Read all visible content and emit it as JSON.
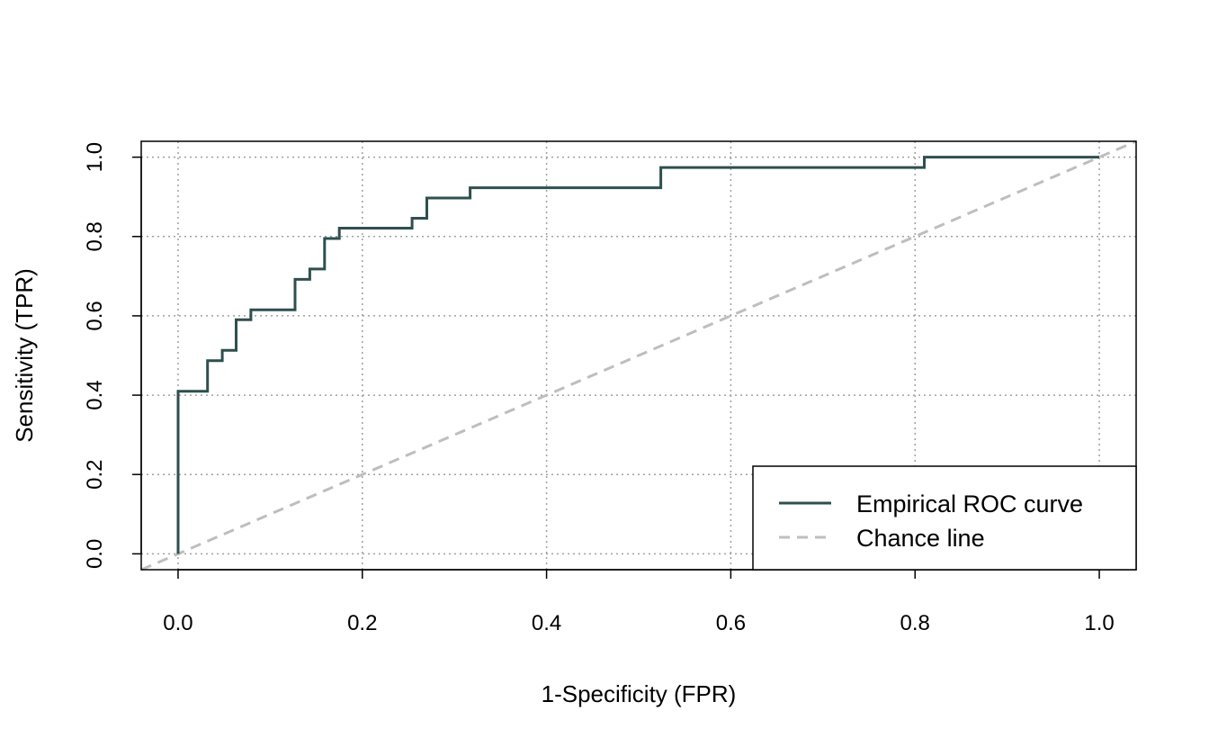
{
  "chart_data": {
    "type": "line",
    "title": "",
    "xlabel": "1-Specificity (FPR)",
    "ylabel": "Sensitivity (TPR)",
    "xlim": [
      -0.04,
      1.04
    ],
    "ylim": [
      -0.04,
      1.04
    ],
    "x_ticks": [
      0.0,
      0.2,
      0.4,
      0.6,
      0.8,
      1.0
    ],
    "y_ticks": [
      0.0,
      0.2,
      0.4,
      0.6,
      0.8,
      1.0
    ],
    "x_tick_labels": [
      "0.0",
      "0.2",
      "0.4",
      "0.6",
      "0.8",
      "1.0"
    ],
    "y_tick_labels": [
      "0.0",
      "0.2",
      "0.4",
      "0.6",
      "0.8",
      "1.0"
    ],
    "grid": true,
    "legend_position": "bottom-right",
    "series": [
      {
        "name": "Empirical ROC curve",
        "style": "solid",
        "color": "#2f4f4f",
        "x": [
          0.0,
          0.0,
          0.032,
          0.032,
          0.048,
          0.048,
          0.063,
          0.063,
          0.079,
          0.079,
          0.127,
          0.127,
          0.143,
          0.143,
          0.159,
          0.159,
          0.175,
          0.175,
          0.254,
          0.254,
          0.27,
          0.27,
          0.317,
          0.317,
          0.524,
          0.524,
          0.81,
          0.81,
          1.0
        ],
        "y": [
          0.0,
          0.41,
          0.41,
          0.487,
          0.487,
          0.513,
          0.513,
          0.59,
          0.59,
          0.615,
          0.615,
          0.692,
          0.692,
          0.718,
          0.718,
          0.795,
          0.795,
          0.821,
          0.821,
          0.846,
          0.846,
          0.897,
          0.897,
          0.923,
          0.923,
          0.974,
          0.974,
          1.0,
          1.0
        ]
      },
      {
        "name": "Chance line",
        "style": "dashed",
        "color": "#bebebe",
        "x": [
          -0.04,
          1.04
        ],
        "y": [
          -0.04,
          1.04
        ]
      }
    ]
  }
}
